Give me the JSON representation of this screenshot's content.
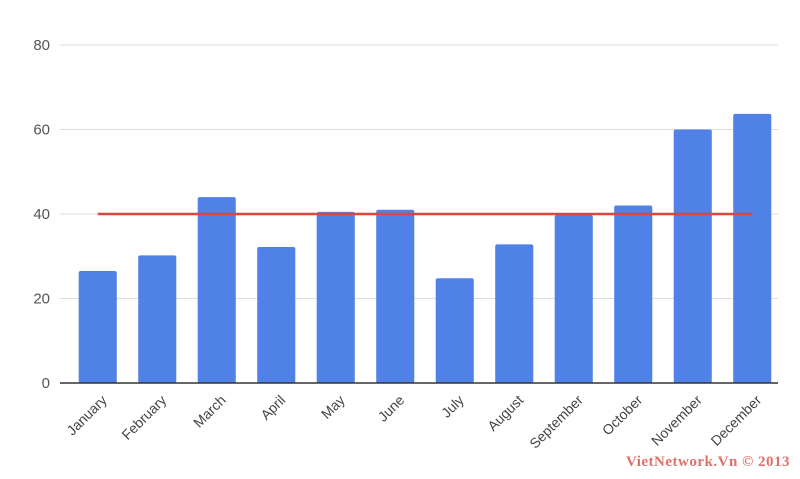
{
  "chart_data": {
    "type": "bar",
    "categories": [
      "January",
      "February",
      "March",
      "April",
      "May",
      "June",
      "July",
      "August",
      "September",
      "October",
      "November",
      "December"
    ],
    "values": [
      26.5,
      30.2,
      44,
      32.2,
      40.5,
      41,
      24.8,
      32.8,
      39.8,
      42,
      60,
      63.7
    ],
    "target_line": 40,
    "ylim": [
      0,
      80
    ],
    "yticks": [
      0,
      20,
      40,
      60,
      80
    ],
    "grid": true,
    "legend": "none",
    "colors": {
      "bar": "#4f81e6",
      "line": "#d9473f",
      "grid": "#dddddd",
      "axis": "#333333"
    }
  },
  "watermark": "VietNetwork.Vn © 2013"
}
